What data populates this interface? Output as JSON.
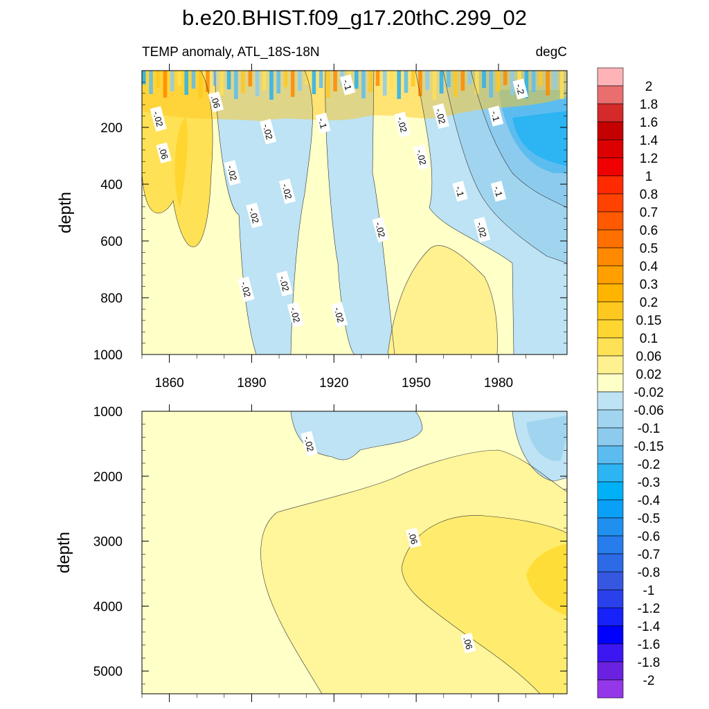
{
  "chart_data": {
    "type": "heatmap",
    "title": "b.e20.BHIST.f09_g17.20thC.299_02",
    "left_subtitle": "TEMP anomaly, ATL_18S-18N",
    "right_subtitle": "degC",
    "xlim": [
      1850,
      2005
    ],
    "x_ticks": [
      1860,
      1890,
      1920,
      1950,
      1980
    ],
    "x_tick_labels": [
      "1860",
      "1890",
      "1920",
      "1950",
      "1980"
    ],
    "panels": [
      {
        "name": "upper",
        "ylabel": "depth",
        "ylim": [
          0,
          1000
        ],
        "y_ticks": [
          200,
          400,
          600,
          800,
          1000
        ],
        "y_tick_labels": [
          "200",
          "400",
          "600",
          "800",
          "1000"
        ],
        "contour_labels": [
          {
            "text": "-.02",
            "x": 1856,
            "y": 170
          },
          {
            "text": ".06",
            "x": 1877,
            "y": 110
          },
          {
            "text": ".06",
            "x": 1858,
            "y": 290
          },
          {
            "text": "-.02",
            "x": 1883,
            "y": 360
          },
          {
            "text": "-.02",
            "x": 1896,
            "y": 215
          },
          {
            "text": "-.1",
            "x": 1925,
            "y": 50
          },
          {
            "text": "-.1",
            "x": 1916,
            "y": 185
          },
          {
            "text": "-.02",
            "x": 1945,
            "y": 190
          },
          {
            "text": "-.02",
            "x": 1959,
            "y": 160
          },
          {
            "text": "-.02",
            "x": 1952,
            "y": 305
          },
          {
            "text": "-.2",
            "x": 1988,
            "y": 65
          },
          {
            "text": "-.1",
            "x": 1979,
            "y": 160
          },
          {
            "text": "-.02",
            "x": 1903,
            "y": 425
          },
          {
            "text": "-.02",
            "x": 1891,
            "y": 510
          },
          {
            "text": "-.1",
            "x": 1966,
            "y": 425
          },
          {
            "text": "-.1",
            "x": 1980,
            "y": 425
          },
          {
            "text": "-.02",
            "x": 1937,
            "y": 560
          },
          {
            "text": "-.02",
            "x": 1974,
            "y": 560
          },
          {
            "text": "-.02",
            "x": 1888,
            "y": 770
          },
          {
            "text": "-.02",
            "x": 1902,
            "y": 750
          },
          {
            "text": "-.02",
            "x": 1906,
            "y": 860
          },
          {
            "text": "-.02",
            "x": 1922,
            "y": 860
          }
        ]
      },
      {
        "name": "lower",
        "ylabel": "depth",
        "ylim": [
          1000,
          5350
        ],
        "y_ticks": [
          1000,
          2000,
          3000,
          4000,
          5000
        ],
        "y_tick_labels": [
          "1000",
          "2000",
          "3000",
          "4000",
          "5000"
        ],
        "contour_labels": [
          {
            "text": "-.02",
            "x": 1911,
            "y": 1500
          },
          {
            "text": ".06",
            "x": 1949,
            "y": 2950
          },
          {
            "text": ".06",
            "x": 1969,
            "y": 4570
          }
        ]
      }
    ],
    "colorbar": {
      "levels": [
        "2",
        "1.8",
        "1.6",
        "1.4",
        "1.2",
        "1",
        "0.8",
        "0.7",
        "0.6",
        "0.5",
        "0.4",
        "0.3",
        "0.2",
        "0.15",
        "0.1",
        "0.06",
        "0.02",
        "-0.02",
        "-0.06",
        "-0.1",
        "-0.15",
        "-0.2",
        "-0.3",
        "-0.4",
        "-0.5",
        "-0.6",
        "-0.7",
        "-0.8",
        "-1",
        "-1.2",
        "-1.4",
        "-1.6",
        "-1.8",
        "-2"
      ],
      "colors": [
        "#ffb3b6",
        "#eb6e6e",
        "#d42a2a",
        "#c40000",
        "#dc0000",
        "#f00000",
        "#ff2a00",
        "#ff4200",
        "#ff5a00",
        "#ff7000",
        "#ff8a00",
        "#ffa000",
        "#ffb400",
        "#ffc81e",
        "#ffd530",
        "#ffe156",
        "#fff090",
        "#ffffc8",
        "#bde3f4",
        "#a1d5ef",
        "#8ccbee",
        "#5cbcf0",
        "#2db4f2",
        "#00b1f8",
        "#0ba0f7",
        "#1f90ee",
        "#267deb",
        "#2c6ae6",
        "#3657e0",
        "#2a40eb",
        "#1622f8",
        "#0000ff",
        "#3c17f2",
        "#6b21e0",
        "#9437e8"
      ]
    }
  }
}
